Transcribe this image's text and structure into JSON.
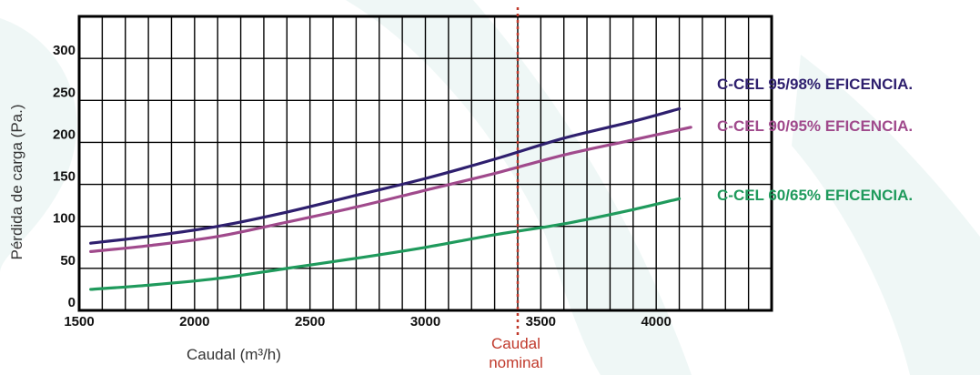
{
  "chart_data": {
    "type": "line",
    "xlabel": "Caudal (m³/h)",
    "ylabel": "Pérdida de carga (Pa.)",
    "xlim": [
      1500,
      4500
    ],
    "ylim": [
      0,
      350
    ],
    "x_ticks": [
      1500,
      2000,
      2500,
      3000,
      3500,
      4000
    ],
    "y_ticks": [
      0,
      50,
      100,
      150,
      200,
      250,
      300
    ],
    "grid": true,
    "reference_line": {
      "x": 3400,
      "label_lines": [
        "Caudal",
        "nominal"
      ],
      "color": "#c0392b"
    },
    "series": [
      {
        "name": "C-CEL 95/98% EFICENCIA.",
        "color": "#2e1f6e",
        "x": [
          1550,
          1800,
          2100,
          2400,
          2700,
          3000,
          3300,
          3600,
          3900,
          4100
        ],
        "y": [
          80,
          88,
          100,
          117,
          137,
          157,
          180,
          205,
          225,
          240
        ]
      },
      {
        "name": "C-CEL 90/95% EFICENCIA.",
        "color": "#a04a8c",
        "x": [
          1550,
          1800,
          2100,
          2400,
          2700,
          3000,
          3300,
          3600,
          3900,
          4150
        ],
        "y": [
          70,
          77,
          88,
          105,
          123,
          143,
          163,
          185,
          203,
          218
        ]
      },
      {
        "name": "C-CEL 60/65% EFICENCIA.",
        "color": "#1f9a5c",
        "x": [
          1550,
          1800,
          2100,
          2400,
          2700,
          3000,
          3300,
          3600,
          3900,
          4100
        ],
        "y": [
          25,
          30,
          38,
          50,
          62,
          75,
          90,
          103,
          120,
          133
        ]
      }
    ]
  }
}
